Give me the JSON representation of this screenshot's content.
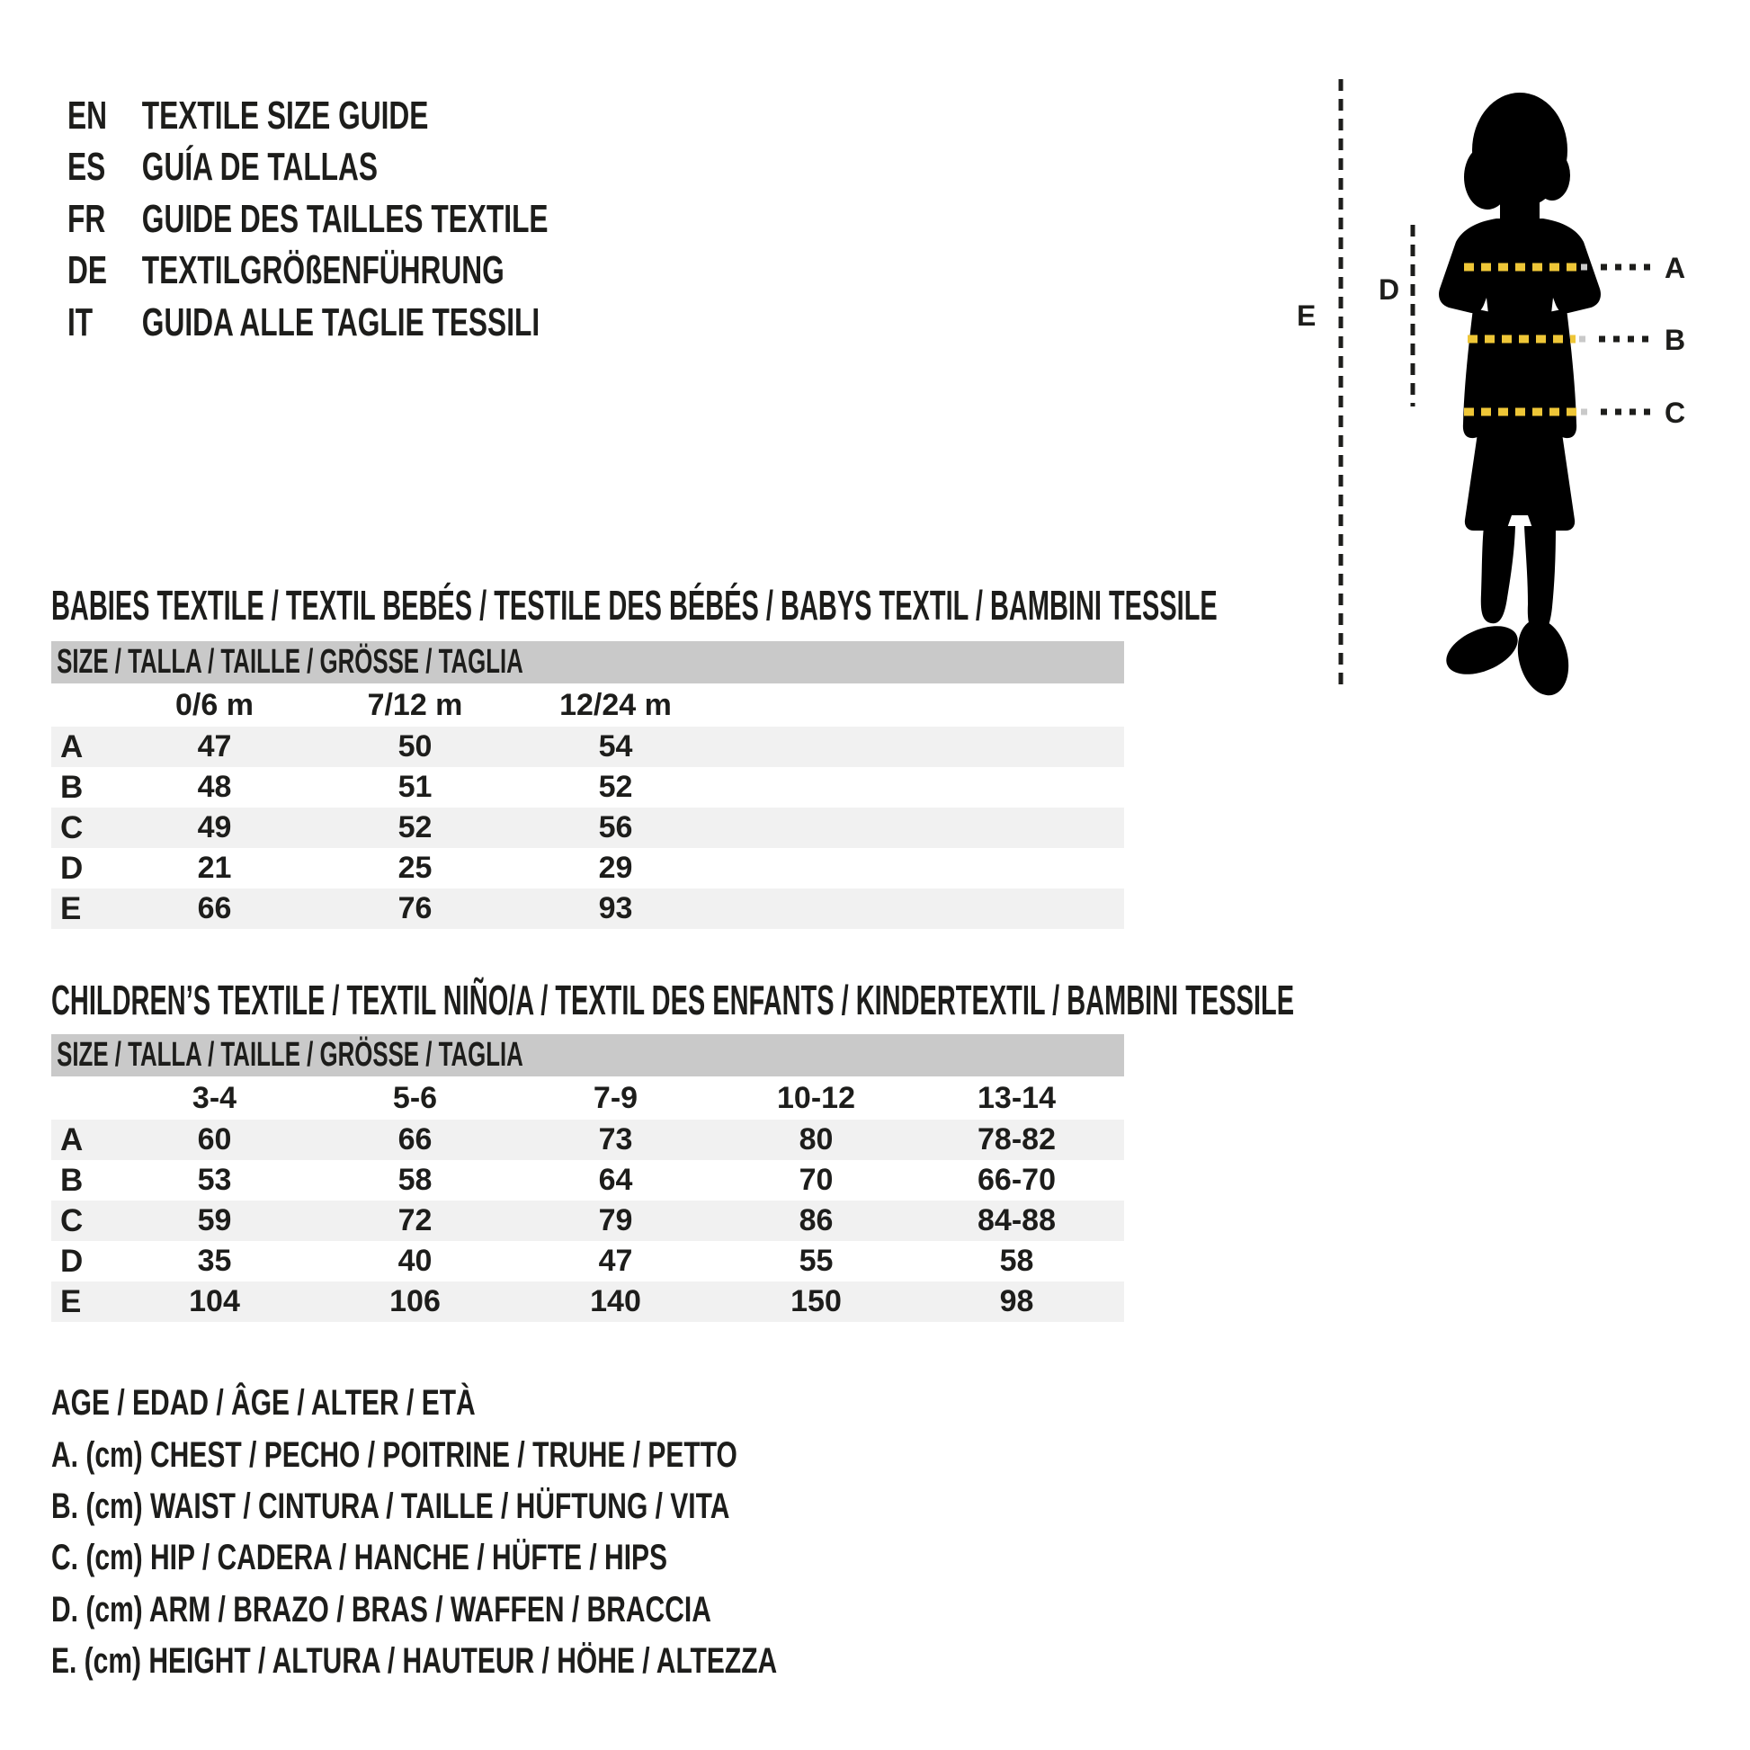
{
  "header": {
    "languages": [
      {
        "code": "EN",
        "title": "TEXTILE SIZE GUIDE"
      },
      {
        "code": "ES",
        "title": "GUÍA DE TALLAS"
      },
      {
        "code": "FR",
        "title": "GUIDE DES TAILLES TEXTILE"
      },
      {
        "code": "DE",
        "title": "TEXTILGRÖßENFÜHRUNG"
      },
      {
        "code": "IT",
        "title": "GUIDA ALLE TAGLIE TESSILI"
      }
    ]
  },
  "figure": {
    "labels": {
      "a": "A",
      "b": "B",
      "c": "C",
      "d": "D",
      "e": "E"
    }
  },
  "babies_table": {
    "section_title": "BABIES TEXTILE / TEXTIL BEBÉS / TESTILE DES BÉBÉS / BABYS TEXTIL / BAMBINI TESSILE",
    "size_header": "SIZE / TALLA / TAILLE / GRÖSSE / TAGLIA",
    "columns": [
      "0/6 m",
      "7/12 m",
      "12/24 m"
    ],
    "rows": [
      {
        "label": "A",
        "values": [
          "47",
          "50",
          "54"
        ]
      },
      {
        "label": "B",
        "values": [
          "48",
          "51",
          "52"
        ]
      },
      {
        "label": "C",
        "values": [
          "49",
          "52",
          "56"
        ]
      },
      {
        "label": "D",
        "values": [
          "21",
          "25",
          "29"
        ]
      },
      {
        "label": "E",
        "values": [
          "66",
          "76",
          "93"
        ]
      }
    ]
  },
  "children_table": {
    "section_title": "CHILDREN’S TEXTILE / TEXTIL NIÑO/A / TEXTIL DES ENFANTS / KINDERTEXTIL / BAMBINI TESSILE",
    "size_header": "SIZE / TALLA / TAILLE / GRÖSSE / TAGLIA",
    "columns": [
      "3-4",
      "5-6",
      "7-9",
      "10-12",
      "13-14"
    ],
    "rows": [
      {
        "label": "A",
        "values": [
          "60",
          "66",
          "73",
          "80",
          "78-82"
        ]
      },
      {
        "label": "B",
        "values": [
          "53",
          "58",
          "64",
          "70",
          "66-70"
        ]
      },
      {
        "label": "C",
        "values": [
          "59",
          "72",
          "79",
          "86",
          "84-88"
        ]
      },
      {
        "label": "D",
        "values": [
          "35",
          "40",
          "47",
          "55",
          "58"
        ]
      },
      {
        "label": "E",
        "values": [
          "104",
          "106",
          "140",
          "150",
          "98"
        ]
      }
    ]
  },
  "legend": {
    "age": "AGE / EDAD / ÂGE / ALTER / ETÀ",
    "items": [
      "A. (cm) CHEST / PECHO / POITRINE / TRUHE / PETTO",
      "B. (cm) WAIST / CINTURA / TAILLE / HÜFTUNG / VITA",
      "C. (cm) HIP / CADERA / HANCHE / HÜFTE / HIPS",
      "D. (cm) ARM / BRAZO / BRAS / WAFFEN / BRACCIA",
      "E. (cm) HEIGHT / ALTURA / HAUTEUR / HÖHE / ALTEZZA"
    ]
  },
  "colors": {
    "text": "#1d1d1b",
    "table_header_bg": "#c9c9c9",
    "row_stripe": "#f1f1f1",
    "measure_yellow": "#eec637",
    "measure_fade": "#c9c9c9",
    "silhouette": "#000000"
  }
}
